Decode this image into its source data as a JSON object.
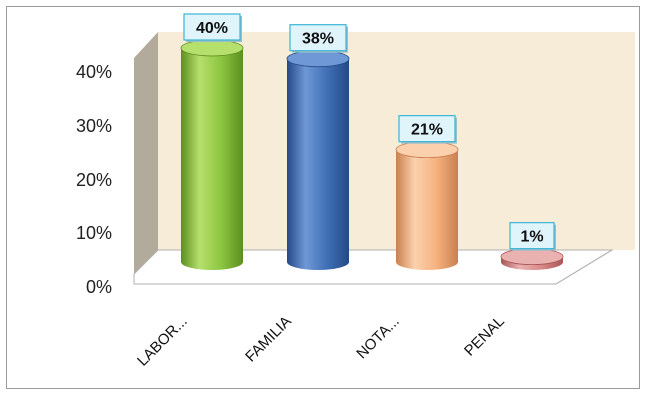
{
  "chart_data": {
    "type": "bar",
    "style": "3d-cylinder",
    "categories": [
      "LABOR...",
      "FAMILIA",
      "NOTA...",
      "PENAL"
    ],
    "values": [
      40,
      38,
      21,
      1
    ],
    "data_labels": [
      "40%",
      "38%",
      "21%",
      "1%"
    ],
    "y_ticks": [
      "0%",
      "10%",
      "20%",
      "30%",
      "40%"
    ],
    "ylim": [
      0,
      40
    ],
    "title": "",
    "xlabel": "",
    "ylabel": "",
    "grid": false,
    "legend": "none",
    "colors": {
      "series": [
        "#8cc63f",
        "#3f6fb5",
        "#f6b27f",
        "#d98a8a"
      ],
      "series_dark": [
        "#5b8f1f",
        "#244a86",
        "#c98050",
        "#a85555"
      ],
      "series_light": [
        "#b6e06d",
        "#6f98d6",
        "#fbd1ad",
        "#eab1b1"
      ],
      "back_wall": "#f6ecd8",
      "side_wall": "#b2ab9c",
      "label_box_fill": "#dff4fb",
      "label_box_border": "#3ab4d6"
    }
  }
}
